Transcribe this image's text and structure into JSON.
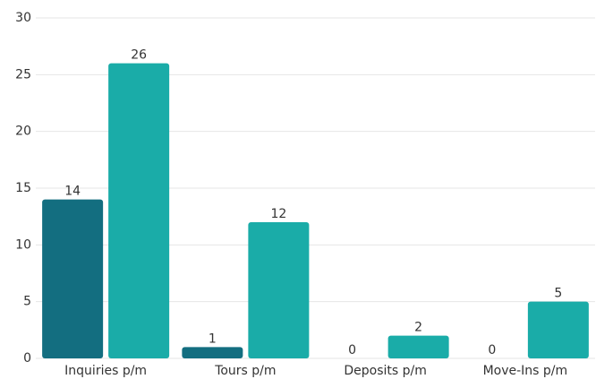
{
  "chart_data": {
    "type": "bar",
    "categories": [
      "Inquiries p/m",
      "Tours p/m",
      "Deposits p/m",
      "Move-Ins p/m"
    ],
    "series": [
      {
        "color": "#136e80",
        "values": [
          14,
          1,
          0,
          0
        ]
      },
      {
        "color": "#1aaca8",
        "values": [
          26,
          12,
          2,
          5
        ]
      }
    ],
    "ylim": [
      0,
      30
    ],
    "yticks": [
      0,
      5,
      10,
      15,
      20,
      25,
      30
    ],
    "grid": true
  }
}
